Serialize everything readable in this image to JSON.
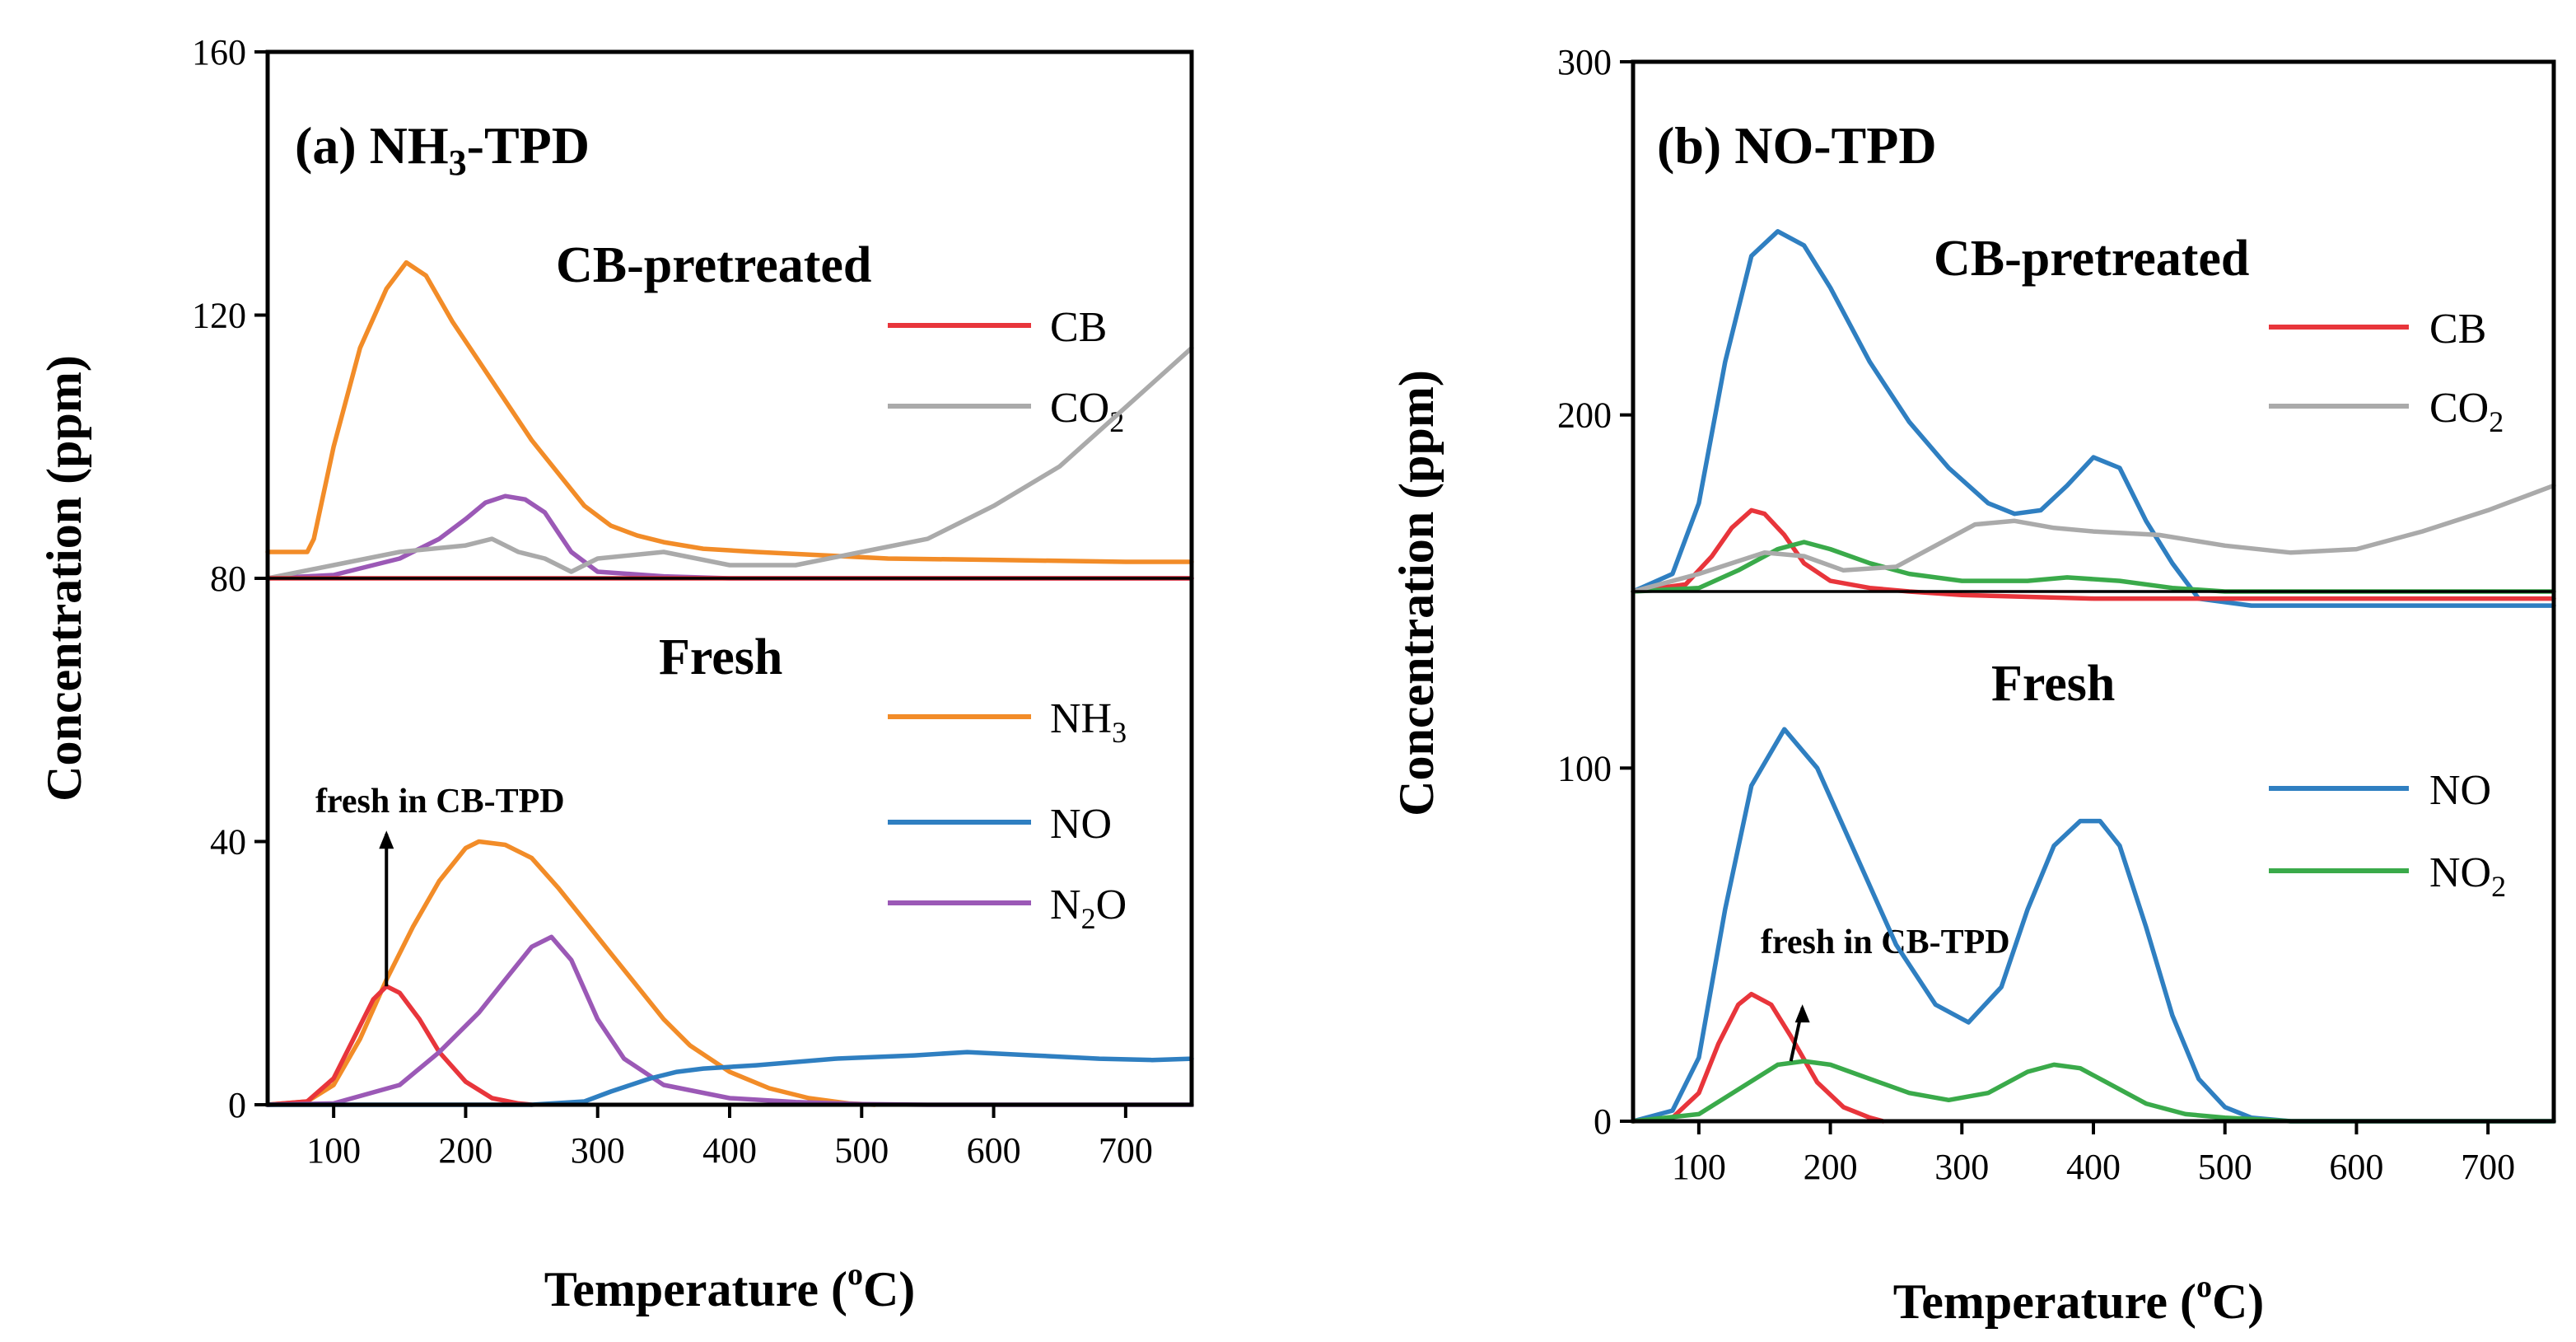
{
  "chart_data": [
    {
      "type": "line",
      "panel": "a",
      "title": "(a) NH3-TPD",
      "title_parts": {
        "prefix": "(a) NH",
        "sub": "3",
        "suffix": "-TPD"
      },
      "xlabel": "Temperature (oC)",
      "xlabel_parts": {
        "prefix": "Temperature (",
        "sup": "o",
        "suffix": "C)"
      },
      "ylabel": "Concentration (ppm)",
      "xlim": [
        50,
        750
      ],
      "ylim": [
        0,
        160
      ],
      "xticks": [
        100,
        200,
        300,
        400,
        500,
        600,
        700
      ],
      "yticks": [
        0,
        40,
        80,
        120,
        160
      ],
      "baseline": 80,
      "groups": [
        {
          "label": "CB-pretreated",
          "offset": 80
        },
        {
          "label": "Fresh",
          "offset": 0
        }
      ],
      "legend": [
        {
          "text": "CB",
          "sub": "",
          "tail": "",
          "series": "CB"
        },
        {
          "text": "CO",
          "sub": "2",
          "tail": "",
          "series": "CO2"
        },
        {
          "text": "NH",
          "sub": "3",
          "tail": "",
          "series": "NH3"
        },
        {
          "text": "NO",
          "sub": "",
          "tail": "",
          "series": "NO"
        },
        {
          "text": "N",
          "sub": "2",
          "tail": "O",
          "series": "N2O"
        }
      ],
      "annotation": {
        "text": "fresh in CB-TPD",
        "x": 140,
        "y": 18
      },
      "series": [
        {
          "name": "NH3",
          "color": "#f28c28",
          "group": "CB-pretreated",
          "x": [
            50,
            80,
            85,
            100,
            120,
            140,
            155,
            170,
            190,
            210,
            230,
            250,
            270,
            290,
            310,
            330,
            350,
            380,
            420,
            470,
            520,
            600,
            700,
            750
          ],
          "y": [
            84,
            84,
            86,
            100,
            115,
            124,
            128,
            126,
            119,
            113,
            107,
            101,
            96,
            91,
            88,
            86.5,
            85.5,
            84.5,
            84,
            83.5,
            83,
            82.8,
            82.5,
            82.5
          ]
        },
        {
          "name": "N2O",
          "color": "#9b59b6",
          "group": "CB-pretreated",
          "x": [
            50,
            100,
            150,
            180,
            200,
            215,
            230,
            245,
            260,
            270,
            280,
            300,
            350,
            400,
            500,
            600,
            700,
            750
          ],
          "y": [
            80,
            80.5,
            83,
            86,
            89,
            91.5,
            92.5,
            92,
            90,
            87,
            84,
            81,
            80.3,
            80,
            80,
            80,
            80,
            80
          ]
        },
        {
          "name": "CO2",
          "color": "#aaaaaa",
          "group": "CB-pretreated",
          "x": [
            50,
            100,
            150,
            200,
            220,
            240,
            260,
            280,
            300,
            350,
            400,
            450,
            500,
            550,
            600,
            650,
            700,
            750
          ],
          "y": [
            80,
            82,
            84,
            85,
            86,
            84,
            83,
            81,
            83,
            84,
            82,
            82,
            84,
            86,
            91,
            97,
            106,
            115
          ]
        },
        {
          "name": "CB",
          "color": "#e8353b",
          "group": "CB-pretreated",
          "x": [
            50,
            750
          ],
          "y": [
            80,
            80
          ]
        },
        {
          "name": "NH3",
          "color": "#f28c28",
          "group": "Fresh",
          "x": [
            50,
            80,
            100,
            120,
            140,
            160,
            180,
            200,
            210,
            230,
            250,
            270,
            290,
            310,
            330,
            350,
            370,
            400,
            430,
            460,
            490,
            510
          ],
          "y": [
            0,
            0.5,
            3,
            10,
            19,
            27,
            34,
            39,
            40,
            39.5,
            37.5,
            33,
            28,
            23,
            18,
            13,
            9,
            5,
            2.5,
            1,
            0.2,
            0
          ]
        },
        {
          "name": "CB",
          "color": "#e8353b",
          "group": "Fresh",
          "x": [
            50,
            80,
            100,
            115,
            130,
            140,
            150,
            165,
            180,
            200,
            220,
            240,
            250
          ],
          "y": [
            0,
            0.5,
            4,
            10,
            16,
            18,
            17,
            13,
            8,
            3.5,
            1,
            0.2,
            0
          ]
        },
        {
          "name": "N2O",
          "color": "#9b59b6",
          "group": "Fresh",
          "x": [
            50,
            100,
            150,
            180,
            210,
            230,
            250,
            265,
            280,
            300,
            320,
            350,
            400,
            450,
            500,
            550,
            600,
            700,
            750
          ],
          "y": [
            0,
            0.2,
            3,
            8,
            14,
            19,
            24,
            25.5,
            22,
            13,
            7,
            3,
            1,
            0.4,
            0.1,
            0,
            0,
            0,
            0
          ]
        },
        {
          "name": "NO",
          "color": "#2f7fc1",
          "group": "Fresh",
          "x": [
            50,
            250,
            290,
            310,
            340,
            360,
            380,
            420,
            480,
            540,
            580,
            630,
            680,
            720,
            750
          ],
          "y": [
            0,
            0,
            0.5,
            2,
            4,
            5,
            5.5,
            6,
            7,
            7.5,
            8,
            7.5,
            7,
            6.8,
            7
          ]
        }
      ]
    },
    {
      "type": "line",
      "panel": "b",
      "title": "(b) NO-TPD",
      "xlabel": "Temperature (oC)",
      "xlabel_parts": {
        "prefix": "Temperature (",
        "sup": "o",
        "suffix": "C)"
      },
      "ylabel": "Concentration (ppm)",
      "xlim": [
        50,
        750
      ],
      "ylim": [
        0,
        300
      ],
      "xticks": [
        100,
        200,
        300,
        400,
        500,
        600,
        700
      ],
      "yticks": [
        0,
        100,
        200,
        300
      ],
      "baseline": 150,
      "groups": [
        {
          "label": "CB-pretreated",
          "offset": 150
        },
        {
          "label": "Fresh",
          "offset": 0
        }
      ],
      "legend": [
        {
          "text": "CB",
          "sub": "",
          "tail": "",
          "series": "CB"
        },
        {
          "text": "CO",
          "sub": "2",
          "tail": "",
          "series": "CO2"
        },
        {
          "text": "NO",
          "sub": "",
          "tail": "",
          "series": "NO"
        },
        {
          "text": "NO",
          "sub": "2",
          "tail": "",
          "series": "NO2"
        }
      ],
      "annotation": {
        "text": "fresh in CB-TPD",
        "x": 170,
        "y": 17
      },
      "series": [
        {
          "name": "NO",
          "color": "#2f7fc1",
          "group": "CB-pretreated",
          "x": [
            50,
            80,
            100,
            120,
            140,
            160,
            180,
            200,
            230,
            260,
            290,
            320,
            340,
            360,
            380,
            400,
            420,
            440,
            460,
            480,
            520,
            600,
            700,
            750
          ],
          "y": [
            150,
            155,
            175,
            215,
            245,
            252,
            248,
            236,
            215,
            198,
            185,
            175,
            172,
            173,
            180,
            188,
            185,
            170,
            158,
            148,
            146,
            146,
            146,
            146
          ]
        },
        {
          "name": "CB",
          "color": "#e8353b",
          "group": "CB-pretreated",
          "x": [
            50,
            90,
            110,
            125,
            140,
            150,
            165,
            180,
            200,
            230,
            260,
            300,
            400,
            500,
            600,
            700,
            750
          ],
          "y": [
            150,
            152,
            160,
            168,
            173,
            172,
            166,
            158,
            153,
            151,
            150,
            149,
            148,
            148,
            148,
            148,
            148
          ]
        },
        {
          "name": "NO2",
          "color": "#3aaa4a",
          "group": "CB-pretreated",
          "x": [
            50,
            100,
            130,
            160,
            180,
            200,
            230,
            260,
            300,
            350,
            380,
            420,
            460,
            500,
            600,
            700,
            750
          ],
          "y": [
            150,
            151,
            156,
            162,
            164,
            162,
            158,
            155,
            153,
            153,
            154,
            153,
            151,
            150,
            150,
            150,
            150
          ]
        },
        {
          "name": "CO2",
          "color": "#aaaaaa",
          "group": "CB-pretreated",
          "x": [
            50,
            100,
            150,
            180,
            210,
            250,
            280,
            310,
            340,
            370,
            400,
            450,
            500,
            550,
            600,
            650,
            700,
            750
          ],
          "y": [
            150,
            155,
            161,
            160,
            156,
            157,
            163,
            169,
            170,
            168,
            167,
            166,
            163,
            161,
            162,
            167,
            173,
            180
          ]
        },
        {
          "name": "NO",
          "color": "#2f7fc1",
          "group": "Fresh",
          "x": [
            50,
            80,
            100,
            120,
            140,
            165,
            190,
            220,
            250,
            280,
            305,
            330,
            350,
            370,
            390,
            405,
            420,
            440,
            460,
            480,
            500,
            520,
            550,
            600,
            700,
            750
          ],
          "y": [
            0,
            3,
            18,
            60,
            95,
            111,
            100,
            75,
            50,
            33,
            28,
            38,
            60,
            78,
            85,
            85,
            78,
            55,
            30,
            12,
            4,
            1,
            0,
            0,
            0,
            0
          ],
          "endpoint_marker": true
        },
        {
          "name": "CB",
          "color": "#e8353b",
          "group": "Fresh",
          "x": [
            50,
            80,
            100,
            115,
            130,
            140,
            155,
            170,
            190,
            210,
            230,
            240
          ],
          "y": [
            0,
            1,
            8,
            22,
            33,
            36,
            33,
            24,
            11,
            4,
            1,
            0
          ]
        },
        {
          "name": "NO2",
          "color": "#3aaa4a",
          "group": "Fresh",
          "x": [
            50,
            100,
            130,
            160,
            180,
            200,
            230,
            260,
            290,
            320,
            350,
            370,
            390,
            410,
            440,
            470,
            500,
            550,
            600,
            700,
            750
          ],
          "y": [
            0,
            2,
            9,
            16,
            17,
            16,
            12,
            8,
            6,
            8,
            14,
            16,
            15,
            11,
            5,
            2,
            1,
            0,
            0,
            0,
            0
          ]
        }
      ]
    }
  ]
}
